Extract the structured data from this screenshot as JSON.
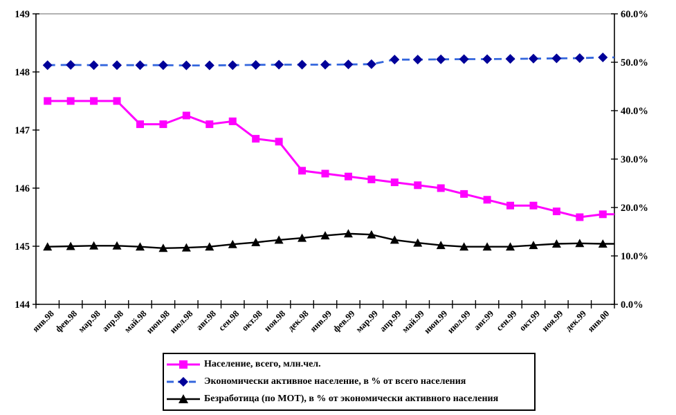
{
  "chart_data": {
    "type": "line",
    "title": "",
    "categories": [
      "янв.98",
      "фев.98",
      "мар.98",
      "апр.98",
      "май.98",
      "июн.98",
      "июл.98",
      "авг.98",
      "сен.98",
      "окт.98",
      "ноя.98",
      "дек.98",
      "янв.99",
      "фев.99",
      "мар.99",
      "апр.99",
      "май.99",
      "июн.99",
      "июл.99",
      "авг.99",
      "сен.99",
      "окт.99",
      "ноя.99",
      "дек.99",
      "янв.00"
    ],
    "series": [
      {
        "name": "population-total",
        "label": "Население, всего, млн.чел.",
        "axis": "left",
        "line_color": "#FF00FF",
        "marker_color": "#FF00FF",
        "marker": "square",
        "line_style": "solid",
        "values": [
          147.5,
          147.5,
          147.5,
          147.5,
          147.1,
          147.1,
          147.25,
          147.1,
          147.15,
          146.85,
          146.8,
          146.3,
          146.25,
          146.2,
          146.15,
          146.1,
          146.05,
          146.0,
          145.9,
          145.8,
          145.7,
          145.7,
          145.6,
          145.5,
          145.55
        ]
      },
      {
        "name": "economically-active",
        "label": "Экономически активное население, в % от всего населения",
        "axis": "right",
        "line_color": "#3366DD",
        "marker_color": "#000099",
        "marker": "diamond",
        "line_style": "dashed",
        "values": [
          49.4,
          49.45,
          49.4,
          49.4,
          49.4,
          49.4,
          49.35,
          49.35,
          49.4,
          49.45,
          49.5,
          49.5,
          49.5,
          49.55,
          49.6,
          50.55,
          50.55,
          50.6,
          50.65,
          50.65,
          50.7,
          50.75,
          50.8,
          50.85,
          51.0
        ]
      },
      {
        "name": "unemployment-ilo",
        "label": "Безработица (по МОТ), в % от экономически активного населения",
        "axis": "right",
        "line_color": "#000000",
        "marker_color": "#000000",
        "marker": "triangle",
        "line_style": "solid",
        "values": [
          11.9,
          12.0,
          12.1,
          12.1,
          11.9,
          11.6,
          11.7,
          11.9,
          12.4,
          12.8,
          13.3,
          13.7,
          14.2,
          14.6,
          14.4,
          13.3,
          12.7,
          12.2,
          11.9,
          11.9,
          11.9,
          12.2,
          12.5,
          12.6,
          12.5
        ]
      }
    ],
    "left_axis": {
      "min": 144,
      "max": 149,
      "tick_labels": [
        "144",
        "145",
        "146",
        "147",
        "148",
        "149"
      ]
    },
    "right_axis": {
      "min": 0,
      "max": 60,
      "tick_labels": [
        "0.0%",
        "10.0%",
        "20.0%",
        "30.0%",
        "40.0%",
        "50.0%",
        "60.0%"
      ]
    },
    "grid": "top-border-only",
    "legend_position": "bottom-center",
    "top_border_color": "#999999",
    "axis_color": "#000000",
    "text_color": "#000000"
  }
}
